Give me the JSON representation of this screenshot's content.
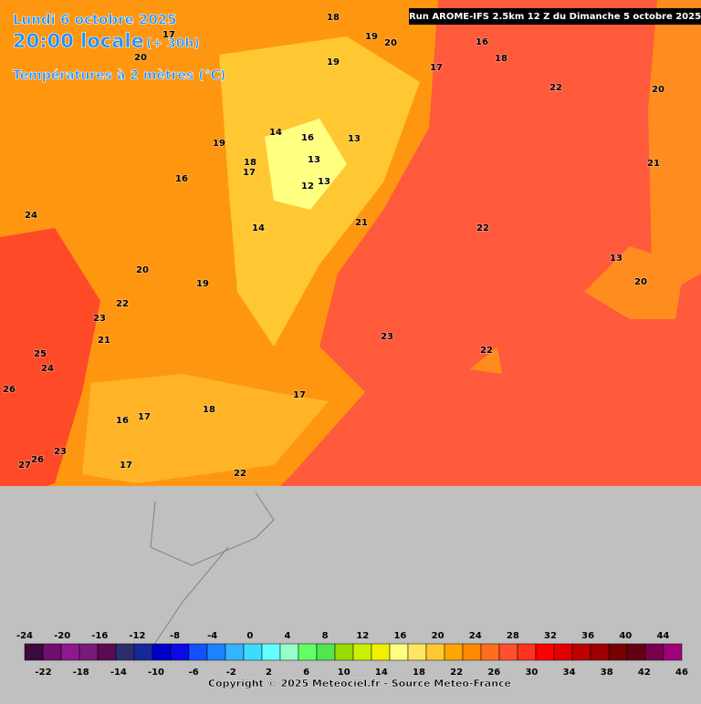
{
  "header": {
    "date": "Lundi 6 octobre 2025",
    "time": "20:00 locale",
    "lead": "(+ 30h)",
    "field": "Températures à 2 mètres (°C)",
    "run": "Run AROME-IFS 2.5km 12 Z du Dimanche 5 octobre 2025"
  },
  "map_labels": [
    "18",
    "19",
    "20",
    "17",
    "20",
    "19",
    "16",
    "18",
    "17",
    "22",
    "20",
    "19",
    "14",
    "16",
    "13",
    "13",
    "18",
    "17",
    "16",
    "12",
    "13",
    "21",
    "24",
    "14",
    "21",
    "22",
    "13",
    "20",
    "20",
    "19",
    "22",
    "23",
    "21",
    "23",
    "22",
    "25",
    "24",
    "26",
    "17",
    "18",
    "17",
    "16",
    "23",
    "26",
    "27",
    "17",
    "22"
  ],
  "legend": {
    "ticks_top": [
      -24,
      -20,
      -16,
      -12,
      -8,
      -4,
      0,
      4,
      8,
      12,
      16,
      20,
      24,
      28,
      32,
      36,
      40,
      44
    ],
    "ticks_bottom": [
      -22,
      -18,
      -14,
      -10,
      -6,
      -2,
      2,
      6,
      10,
      14,
      18,
      22,
      26,
      30,
      34,
      38,
      42,
      46
    ],
    "colors": [
      "#3c0a3c",
      "#6e0f6e",
      "#8c1a8c",
      "#781a78",
      "#5a0a50",
      "#2d2d6e",
      "#14289a",
      "#0000c8",
      "#0a0ae6",
      "#1450ff",
      "#1e82ff",
      "#32b4ff",
      "#3cdcff",
      "#64ffff",
      "#96ffc8",
      "#64ff64",
      "#50e650",
      "#96dc00",
      "#c8f000",
      "#f0f000",
      "#ffff82",
      "#ffe664",
      "#ffc832",
      "#ffa500",
      "#ff8c00",
      "#ff6e1e",
      "#ff5032",
      "#ff321e",
      "#ff0000",
      "#e10000",
      "#be0000",
      "#a00000",
      "#780000",
      "#640014",
      "#78004b",
      "#a0007a"
    ]
  },
  "copyright": "Copyright © 2025 Meteociel.fr - Source Meteo-France"
}
